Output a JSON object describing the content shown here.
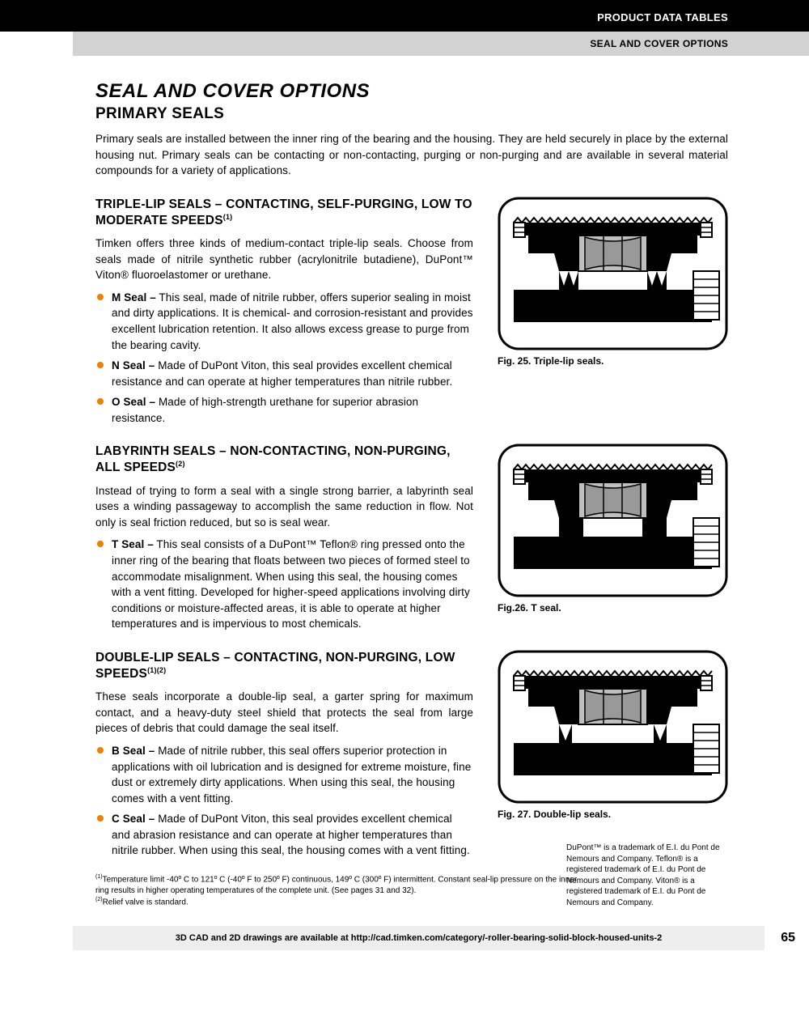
{
  "header": {
    "line1": "PRODUCT DATA TABLES",
    "line2": "SEAL AND COVER OPTIONS"
  },
  "title_main": "SEAL AND COVER OPTIONS",
  "title_sub": "PRIMARY SEALS",
  "intro": "Primary seals are installed between the inner ring of the bearing and the housing. They are held securely in place by the external housing nut. Primary seals can be contacting or non-contacting, purging or non-purging and are available in several material compounds for a variety of applications.",
  "sections": [
    {
      "head": "TRIPLE-LIP SEALS – CONTACTING, SELF-PURGING, LOW TO MODERATE SPEEDS",
      "sup": "(1)",
      "body": "Timken offers three kinds of medium-contact triple-lip seals. Choose from seals made of nitrile synthetic rubber (acrylonitrile butadiene), DuPont™ Viton® fluoroelastomer or urethane.",
      "bullets": [
        {
          "label": "M Seal –",
          "text": " This seal, made of nitrile rubber, offers superior sealing in moist and dirty applications. It is chemical- and corrosion-resistant and provides excellent lubrication retention. It also allows excess grease to purge from the bearing cavity."
        },
        {
          "label": "N Seal –",
          "text": " Made of DuPont Viton, this seal provides excellent chemical resistance and can operate at higher temperatures than nitrile rubber."
        },
        {
          "label": "O Seal –",
          "text": " Made of high-strength urethane for superior abrasion resistance."
        }
      ],
      "fig_caption": "Fig. 25. Triple-lip seals."
    },
    {
      "head": "LABYRINTH SEALS – NON-CONTACTING, NON-PURGING, ALL SPEEDS",
      "sup": "(2)",
      "body": "Instead of trying to form a seal with a single strong barrier, a labyrinth seal uses a winding passageway to accomplish the same reduction in flow. Not only is seal friction reduced, but so is seal wear.",
      "bullets": [
        {
          "label": "T Seal –",
          "text": " This seal consists of a DuPont™ Teflon® ring pressed onto the inner ring of the bearing that floats between two pieces of formed steel to accommodate misalignment. When using this seal, the housing comes with a vent fitting. Developed for higher-speed applications involving dirty conditions or moisture-affected areas, it is able to operate at higher temperatures and is impervious to most chemicals."
        }
      ],
      "fig_caption": "Fig.26. T seal."
    },
    {
      "head": "DOUBLE-LIP SEALS – CONTACTING, NON-PURGING, LOW SPEEDS",
      "sup": "(1)(2)",
      "body": "These seals incorporate a double-lip seal, a garter spring for maximum contact, and a heavy-duty steel shield that protects the seal from large pieces of debris that could damage the seal itself.",
      "bullets": [
        {
          "label": "B Seal –",
          "text": " Made of nitrile rubber, this seal offers superior protection in applications with oil lubrication and is designed for extreme moisture, fine dust or extremely dirty applications. When using this seal, the housing comes with a vent fitting."
        },
        {
          "label": "C Seal –",
          "text": " Made of DuPont Viton, this seal provides excellent chemical and abrasion resistance and can operate at higher temperatures than nitrile rubber. When using this seal, the housing comes with a vent fitting."
        }
      ],
      "fig_caption": "Fig. 27. Double-lip seals."
    }
  ],
  "footnotes": [
    {
      "sup": "(1)",
      "text": "Temperature limit -40º C to 121º C (-40º F to 250º F) continuous, 149º C (300º F) intermittent. Constant seal-lip pressure on the inner ring results in higher operating temperatures of the complete unit. (See pages 31 and 32)."
    },
    {
      "sup": "(2)",
      "text": "Relief valve is standard."
    }
  ],
  "trademark": "DuPont™ is a trademark of E.I. du Pont de Nemours and Company. Teflon® is a registered trademark of E.I. du Pont de Nemours and Company. Viton® is a registered trademark of E.I. du Pont de Nemours and Company.",
  "footer": {
    "text": "3D CAD and 2D drawings are available at http://cad.timken.com/category/-roller-bearing-solid-block-housed-units-2",
    "page": "65"
  }
}
